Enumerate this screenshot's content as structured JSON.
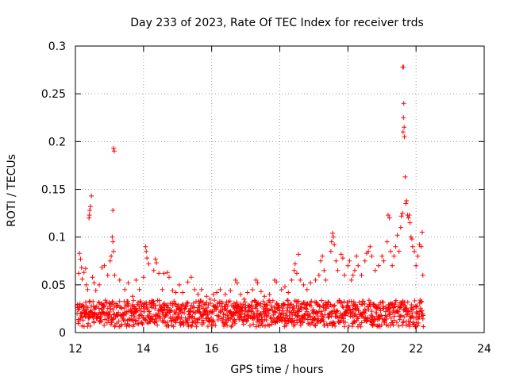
{
  "chart_data": {
    "type": "scatter",
    "title": "Day 233 of 2023, Rate Of TEC Index for receiver trds",
    "xlabel": "GPS time / hours",
    "ylabel": "ROTI / TECUs",
    "xlim": [
      12,
      24
    ],
    "ylim": [
      0,
      0.3
    ],
    "xticks": [
      12,
      14,
      16,
      18,
      20,
      22,
      24
    ],
    "yticks": [
      0,
      0.05,
      0.1,
      0.15,
      0.2,
      0.25,
      0.3
    ],
    "xtick_labels": [
      "12",
      "14",
      "16",
      "18",
      "20",
      "22",
      "24"
    ],
    "ytick_labels": [
      "0",
      "0.05",
      "0.1",
      "0.15",
      "0.2",
      "0.25",
      "0.3"
    ],
    "grid": true,
    "marker": "plus",
    "color": "#ff0000",
    "series": [
      {
        "name": "trds",
        "points": [
          [
            12.12,
            0.083
          ],
          [
            12.15,
            0.077
          ],
          [
            12.18,
            0.068
          ],
          [
            12.1,
            0.062
          ],
          [
            12.2,
            0.056
          ],
          [
            12.25,
            0.063
          ],
          [
            12.3,
            0.067
          ],
          [
            12.32,
            0.05
          ],
          [
            12.36,
            0.045
          ],
          [
            12.4,
            0.12
          ],
          [
            12.41,
            0.123
          ],
          [
            12.42,
            0.128
          ],
          [
            12.44,
            0.132
          ],
          [
            12.47,
            0.143
          ],
          [
            12.5,
            0.058
          ],
          [
            12.55,
            0.052
          ],
          [
            12.6,
            0.044
          ],
          [
            12.7,
            0.05
          ],
          [
            12.78,
            0.068
          ],
          [
            12.85,
            0.07
          ],
          [
            12.95,
            0.06
          ],
          [
            13.02,
            0.075
          ],
          [
            13.05,
            0.08
          ],
          [
            13.08,
            0.1
          ],
          [
            13.1,
            0.095
          ],
          [
            13.12,
            0.085
          ],
          [
            13.15,
            0.06
          ],
          [
            13.1,
            0.128
          ],
          [
            13.12,
            0.193
          ],
          [
            13.14,
            0.19
          ],
          [
            13.3,
            0.055
          ],
          [
            13.45,
            0.045
          ],
          [
            13.55,
            0.052
          ],
          [
            13.68,
            0.038
          ],
          [
            13.78,
            0.055
          ],
          [
            13.88,
            0.045
          ],
          [
            14.0,
            0.058
          ],
          [
            14.06,
            0.09
          ],
          [
            14.08,
            0.085
          ],
          [
            14.1,
            0.078
          ],
          [
            14.15,
            0.072
          ],
          [
            14.3,
            0.065
          ],
          [
            14.35,
            0.077
          ],
          [
            14.38,
            0.073
          ],
          [
            14.45,
            0.062
          ],
          [
            14.55,
            0.045
          ],
          [
            14.6,
            0.062
          ],
          [
            14.7,
            0.063
          ],
          [
            14.75,
            0.058
          ],
          [
            14.85,
            0.044
          ],
          [
            14.95,
            0.042
          ],
          [
            15.05,
            0.05
          ],
          [
            15.15,
            0.042
          ],
          [
            15.3,
            0.053
          ],
          [
            15.4,
            0.058
          ],
          [
            15.5,
            0.045
          ],
          [
            15.6,
            0.04
          ],
          [
            15.7,
            0.045
          ],
          [
            15.75,
            0.032
          ],
          [
            15.85,
            0.038
          ],
          [
            15.95,
            0.035
          ],
          [
            16.05,
            0.04
          ],
          [
            16.15,
            0.042
          ],
          [
            16.25,
            0.045
          ],
          [
            16.4,
            0.04
          ],
          [
            16.55,
            0.044
          ],
          [
            16.7,
            0.055
          ],
          [
            16.75,
            0.052
          ],
          [
            16.85,
            0.04
          ],
          [
            16.95,
            0.035
          ],
          [
            17.05,
            0.042
          ],
          [
            17.2,
            0.045
          ],
          [
            17.3,
            0.055
          ],
          [
            17.35,
            0.052
          ],
          [
            17.45,
            0.043
          ],
          [
            17.55,
            0.038
          ],
          [
            17.7,
            0.04
          ],
          [
            17.85,
            0.055
          ],
          [
            17.9,
            0.053
          ],
          [
            18.05,
            0.045
          ],
          [
            18.15,
            0.048
          ],
          [
            18.25,
            0.042
          ],
          [
            18.35,
            0.055
          ],
          [
            18.42,
            0.065
          ],
          [
            18.45,
            0.072
          ],
          [
            18.5,
            0.062
          ],
          [
            18.55,
            0.082
          ],
          [
            18.6,
            0.055
          ],
          [
            18.7,
            0.05
          ],
          [
            18.8,
            0.045
          ],
          [
            18.9,
            0.052
          ],
          [
            19.05,
            0.055
          ],
          [
            19.15,
            0.06
          ],
          [
            19.2,
            0.075
          ],
          [
            19.25,
            0.08
          ],
          [
            19.3,
            0.065
          ],
          [
            19.35,
            0.055
          ],
          [
            19.5,
            0.085
          ],
          [
            19.52,
            0.095
          ],
          [
            19.55,
            0.104
          ],
          [
            19.57,
            0.1
          ],
          [
            19.6,
            0.092
          ],
          [
            19.65,
            0.075
          ],
          [
            19.7,
            0.065
          ],
          [
            19.8,
            0.082
          ],
          [
            19.85,
            0.078
          ],
          [
            19.9,
            0.06
          ],
          [
            20.0,
            0.07
          ],
          [
            20.05,
            0.075
          ],
          [
            20.1,
            0.055
          ],
          [
            20.15,
            0.06
          ],
          [
            20.2,
            0.065
          ],
          [
            20.25,
            0.08
          ],
          [
            20.3,
            0.07
          ],
          [
            20.4,
            0.06
          ],
          [
            20.5,
            0.075
          ],
          [
            20.55,
            0.083
          ],
          [
            20.6,
            0.085
          ],
          [
            20.65,
            0.09
          ],
          [
            20.7,
            0.08
          ],
          [
            20.8,
            0.065
          ],
          [
            20.9,
            0.07
          ],
          [
            21.0,
            0.08
          ],
          [
            21.05,
            0.075
          ],
          [
            21.15,
            0.095
          ],
          [
            21.18,
            0.123
          ],
          [
            21.22,
            0.12
          ],
          [
            21.25,
            0.085
          ],
          [
            21.3,
            0.07
          ],
          [
            21.35,
            0.08
          ],
          [
            21.4,
            0.09
          ],
          [
            21.45,
            0.102
          ],
          [
            21.5,
            0.085
          ],
          [
            21.55,
            0.11
          ],
          [
            21.57,
            0.122
          ],
          [
            21.6,
            0.125
          ],
          [
            21.62,
            0.21
          ],
          [
            21.65,
            0.215
          ],
          [
            21.66,
            0.205
          ],
          [
            21.63,
            0.225
          ],
          [
            21.64,
            0.24
          ],
          [
            21.61,
            0.278
          ],
          [
            21.63,
            0.278
          ],
          [
            21.68,
            0.163
          ],
          [
            21.7,
            0.135
          ],
          [
            21.72,
            0.138
          ],
          [
            21.75,
            0.123
          ],
          [
            21.78,
            0.12
          ],
          [
            21.8,
            0.123
          ],
          [
            21.82,
            0.115
          ],
          [
            21.85,
            0.1
          ],
          [
            21.88,
            0.098
          ],
          [
            21.9,
            0.09
          ],
          [
            21.95,
            0.085
          ],
          [
            22.0,
            0.07
          ],
          [
            22.05,
            0.08
          ],
          [
            22.1,
            0.092
          ],
          [
            22.15,
            0.09
          ],
          [
            22.18,
            0.105
          ],
          [
            22.2,
            0.06
          ]
        ]
      }
    ]
  }
}
